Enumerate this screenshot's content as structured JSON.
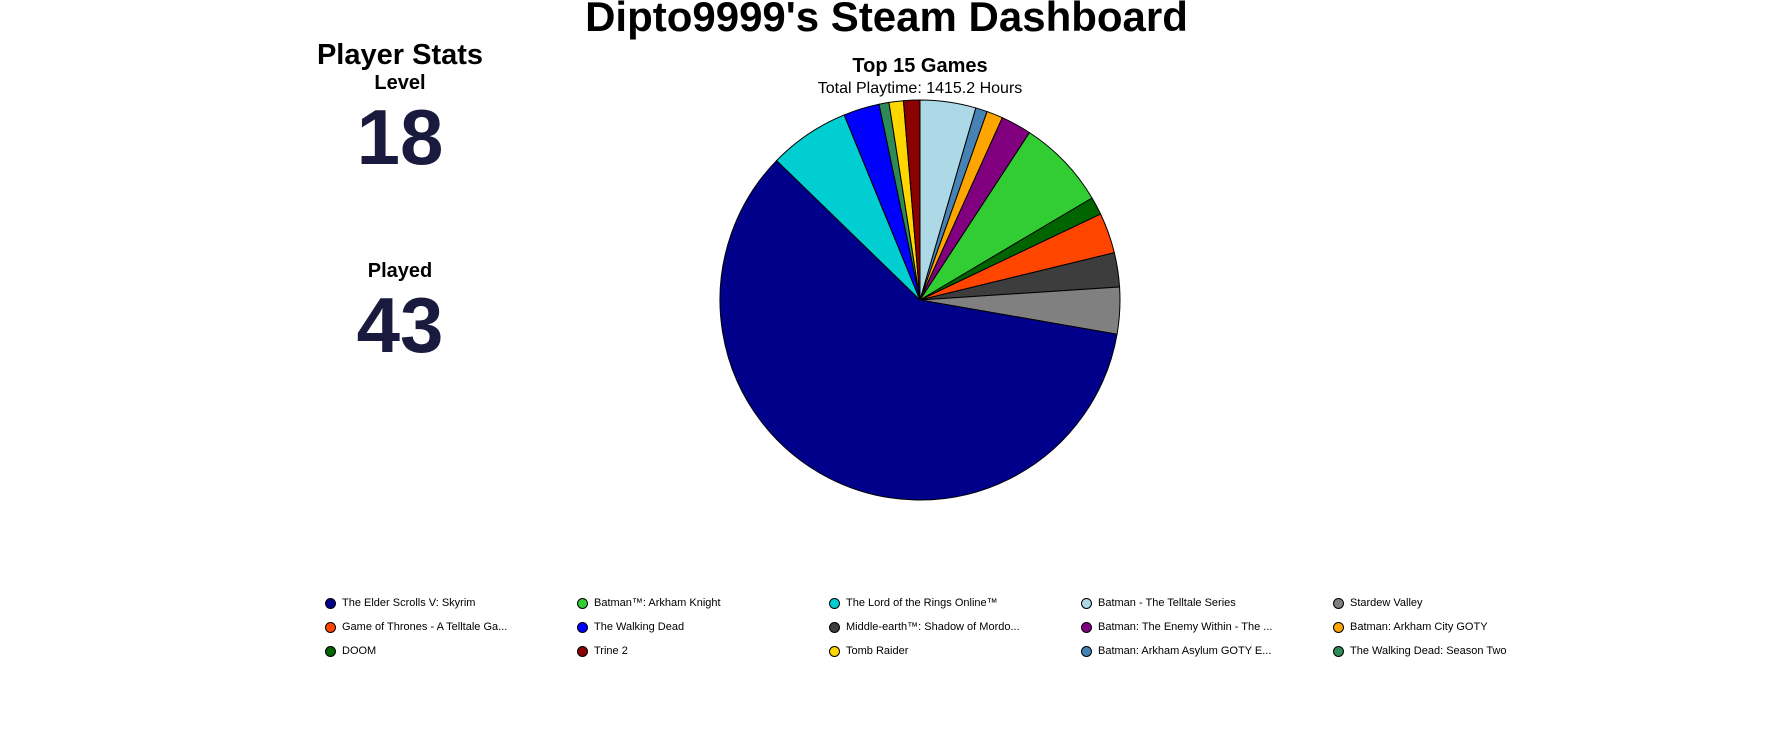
{
  "page": {
    "title": "Dipto9999's Steam Dashboard"
  },
  "stats": {
    "title": "Player Stats",
    "level_label": "Level",
    "level_value": "18",
    "played_label": "Played",
    "played_value": "43"
  },
  "chart_data": {
    "type": "pie",
    "title": "Top 15 Games",
    "subtitle": "Total Playtime: 1415.2 Hours",
    "start_angle_deg": 0,
    "direction": "clockwise",
    "legend_position": "bottom",
    "slices": [
      {
        "label": "Batman - The Telltale Series",
        "value": 62.0,
        "color": "#add8e6"
      },
      {
        "label": "Batman: Arkham Asylum GOTY E...",
        "value": 13.0,
        "color": "#4682b4"
      },
      {
        "label": "Batman: Arkham City GOTY",
        "value": 18.0,
        "color": "#ffa500"
      },
      {
        "label": "Batman: The Enemy Within - The ...",
        "value": 34.0,
        "color": "#800080"
      },
      {
        "label": "Batman™: Arkham Knight",
        "value": 100.0,
        "color": "#32cd32"
      },
      {
        "label": "DOOM",
        "value": 20.0,
        "color": "#006400"
      },
      {
        "label": "Game of Thrones - A Telltale Ga...",
        "value": 45.0,
        "color": "#ff4500"
      },
      {
        "label": "Middle-earth™: Shadow of Mordo...",
        "value": 38.0,
        "color": "#3d3d3d"
      },
      {
        "label": "Stardew Valley",
        "value": 52.0,
        "color": "#808080"
      },
      {
        "label": "The Elder Scrolls V: Skyrim",
        "value": 820.0,
        "color": "#00008b"
      },
      {
        "label": "The Lord of the Rings Online™",
        "value": 90.0,
        "color": "#00ced1"
      },
      {
        "label": "The Walking Dead",
        "value": 40.0,
        "color": "#0000ff"
      },
      {
        "label": "The Walking Dead: Season Two",
        "value": 11.0,
        "color": "#2e8b57"
      },
      {
        "label": "Tomb Raider",
        "value": 16.0,
        "color": "#ffd700"
      },
      {
        "label": "Trine 2",
        "value": 18.2,
        "color": "#8b0000"
      }
    ],
    "legend": [
      {
        "label": "The Elder Scrolls V: Skyrim",
        "color": "#00008b"
      },
      {
        "label": "Batman™: Arkham Knight",
        "color": "#32cd32"
      },
      {
        "label": "The Lord of the Rings Online™",
        "color": "#00ced1"
      },
      {
        "label": "Batman - The Telltale Series",
        "color": "#add8e6"
      },
      {
        "label": "Stardew Valley",
        "color": "#808080"
      },
      {
        "label": "Game of Thrones - A Telltale Ga...",
        "color": "#ff4500"
      },
      {
        "label": "The Walking Dead",
        "color": "#0000ff"
      },
      {
        "label": "Middle-earth™: Shadow of Mordo...",
        "color": "#3d3d3d"
      },
      {
        "label": "Batman: The Enemy Within - The ...",
        "color": "#800080"
      },
      {
        "label": "Batman: Arkham City GOTY",
        "color": "#ffa500"
      },
      {
        "label": "DOOM",
        "color": "#006400"
      },
      {
        "label": "Trine 2",
        "color": "#8b0000"
      },
      {
        "label": "Tomb Raider",
        "color": "#ffd700"
      },
      {
        "label": "Batman: Arkham Asylum GOTY E...",
        "color": "#4682b4"
      },
      {
        "label": "The Walking Dead: Season Two",
        "color": "#2e8b57"
      }
    ]
  }
}
